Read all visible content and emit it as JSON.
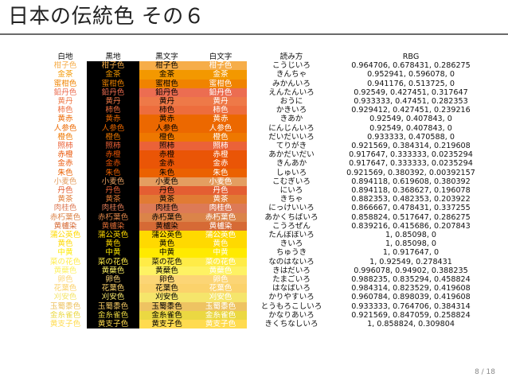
{
  "slide": {
    "title": "日本の伝統色 その６",
    "page_number": "8 / 18"
  },
  "table": {
    "headers": [
      "白地",
      "黒地",
      "黒文字",
      "白文字",
      "読み方",
      "RBG"
    ],
    "rows": [
      {
        "name": "柑子色",
        "reading": "こうじいろ",
        "rgb": "0.964706, 0.678431, 0.286275",
        "color": "#F6AD49"
      },
      {
        "name": "金茶",
        "reading": "きんちゃ",
        "rgb": "0.952941, 0.596078, 0",
        "color": "#F39800"
      },
      {
        "name": "蜜柑色",
        "reading": "みかんいろ",
        "rgb": "0.941176, 0.513725, 0",
        "color": "#F08300"
      },
      {
        "name": "鉛丹色",
        "reading": "えんたんいろ",
        "rgb": "0.92549, 0.427451, 0.317647",
        "color": "#EC6D51"
      },
      {
        "name": "黄丹",
        "reading": "おうに",
        "rgb": "0.933333, 0.47451, 0.282353",
        "color": "#EE7948"
      },
      {
        "name": "柿色",
        "reading": "かきいろ",
        "rgb": "0.929412, 0.427451, 0.239216",
        "color": "#ED6D3D"
      },
      {
        "name": "黄赤",
        "reading": "きあか",
        "rgb": "0.92549, 0.407843, 0",
        "color": "#EC6800"
      },
      {
        "name": "人参色",
        "reading": "にんじんいろ",
        "rgb": "0.92549, 0.407843, 0",
        "color": "#EC6800"
      },
      {
        "name": "橙色",
        "reading": "だいだいいろ",
        "rgb": "0.933333, 0.470588, 0",
        "color": "#EE7800"
      },
      {
        "name": "照柿",
        "reading": "てりがき",
        "rgb": "0.921569, 0.384314, 0.219608",
        "color": "#EB6238"
      },
      {
        "name": "赤橙",
        "reading": "あかだいだい",
        "rgb": "0.917647, 0.333333, 0.0235294",
        "color": "#EA5506"
      },
      {
        "name": "金赤",
        "reading": "きんあか",
        "rgb": "0.917647, 0.333333, 0.0235294",
        "color": "#EA5506"
      },
      {
        "name": "朱色",
        "reading": "しゅいろ",
        "rgb": "0.921569, 0.380392, 0.00392157",
        "color": "#EB6101"
      },
      {
        "name": "小麦色",
        "reading": "こむぎいろ",
        "rgb": "0.894118, 0.619608, 0.380392",
        "color": "#E49E61"
      },
      {
        "name": "丹色",
        "reading": "にいろ",
        "rgb": "0.894118, 0.368627, 0.196078",
        "color": "#E45E32"
      },
      {
        "name": "黄茶",
        "reading": "きちゃ",
        "rgb": "0.882353, 0.482353, 0.203922",
        "color": "#E17B34"
      },
      {
        "name": "肉桂色",
        "reading": "にっけいいろ",
        "rgb": "0.866667, 0.478431, 0.337255",
        "color": "#DD7A56"
      },
      {
        "name": "赤朽葉色",
        "reading": "あかくちばいろ",
        "rgb": "0.858824, 0.517647, 0.286275",
        "color": "#DB8449"
      },
      {
        "name": "黄櫨染",
        "reading": "こうろぜん",
        "rgb": "0.839216, 0.415686, 0.207843",
        "color": "#D66A35"
      },
      {
        "name": "蒲公英色",
        "reading": "たんぽぽいろ",
        "rgb": "1, 0.85098, 0",
        "color": "#FFD900"
      },
      {
        "name": "黄色",
        "reading": "きいろ",
        "rgb": "1, 0.85098, 0",
        "color": "#FFD900"
      },
      {
        "name": "中黄",
        "reading": "ちゅうき",
        "rgb": "1, 0.917647, 0",
        "color": "#FFEA00"
      },
      {
        "name": "菜の花色",
        "reading": "なのはないろ",
        "rgb": "1, 0.92549, 0.278431",
        "color": "#FFEC47"
      },
      {
        "name": "黄蘗色",
        "reading": "きはだいろ",
        "rgb": "0.996078, 0.94902, 0.388235",
        "color": "#FEF263"
      },
      {
        "name": "卵色",
        "reading": "たまごいろ",
        "rgb": "0.988235, 0.835294, 0.458824",
        "color": "#FCD575"
      },
      {
        "name": "花葉色",
        "reading": "はなばいろ",
        "rgb": "0.984314, 0.823529, 0.419608",
        "color": "#FBD26B"
      },
      {
        "name": "刈安色",
        "reading": "かりやすいろ",
        "rgb": "0.960784, 0.898039, 0.419608",
        "color": "#F5E56B"
      },
      {
        "name": "玉蜀黍色",
        "reading": "とうもろこしいろ",
        "rgb": "0.933333, 0.764706, 0.384314",
        "color": "#EEC362"
      },
      {
        "name": "金糸雀色",
        "reading": "かなりあいろ",
        "rgb": "0.921569, 0.847059, 0.258824",
        "color": "#EBD842"
      },
      {
        "name": "黄支子色",
        "reading": "きくちなしいろ",
        "rgb": "1, 0.858824, 0.309804",
        "color": "#FFDB4F"
      }
    ]
  }
}
